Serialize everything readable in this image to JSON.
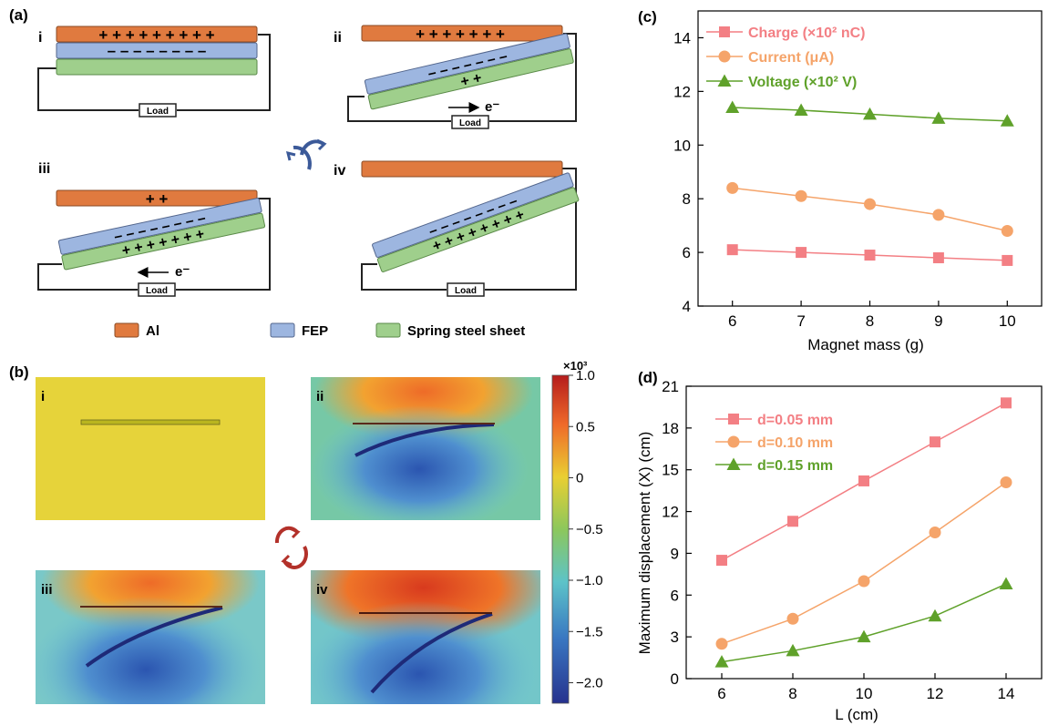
{
  "panel_labels": {
    "a": "(a)",
    "b": "(b)",
    "c": "(c)",
    "d": "(d)"
  },
  "schematic": {
    "sub_labels": [
      "i",
      "ii",
      "iii",
      "iv"
    ],
    "load_label": "Load",
    "electron_label": "e⁻",
    "charges": {
      "i_al": "+ + + + + + + + +",
      "i_fep": "– – – – – – – –",
      "ii_al": "+ + + + + + +",
      "ii_fep": "– – – – – – –",
      "ii_steel": "+ +",
      "iii_al": "+ +",
      "iii_fep": "– – – – – – – –",
      "iii_steel": "+ + + + + + +",
      "iv_fep": "– – – – – – – –",
      "iv_steel": "+ + + + + + + +"
    },
    "legend": [
      {
        "label": "Al",
        "color": "#e07a3f"
      },
      {
        "label": "FEP",
        "color": "#9db6e0"
      },
      {
        "label": "Spring steel sheet",
        "color": "#9fcf8c"
      }
    ]
  },
  "simulation": {
    "sub_labels": [
      "i",
      "ii",
      "iii",
      "iv"
    ],
    "colorbar": {
      "multiplier": "×10³",
      "ticks": [
        "1.0",
        "0.5",
        "0",
        "−0.5",
        "−1.0",
        "−1.5",
        "−2.0"
      ],
      "range": [
        -2.2,
        1.0
      ]
    }
  },
  "chart_data": [
    {
      "type": "line",
      "panel": "(c)",
      "xlabel": "Magnet mass (g)",
      "ylabel": "",
      "xlim": [
        5.5,
        10.5
      ],
      "ylim": [
        4,
        15
      ],
      "xticks": [
        6,
        7,
        8,
        9,
        10
      ],
      "yticks": [
        4,
        6,
        8,
        10,
        12,
        14
      ],
      "x": [
        6,
        7,
        8,
        9,
        10
      ],
      "legend_position": "top-left",
      "series": [
        {
          "name": "Charge (×10² nC)",
          "color": "#f37f84",
          "marker": "square",
          "values": [
            6.1,
            6.0,
            5.9,
            5.8,
            5.7
          ]
        },
        {
          "name": "Current (μA)",
          "color": "#f5a46a",
          "marker": "circle",
          "values": [
            8.4,
            8.1,
            7.8,
            7.4,
            6.8
          ]
        },
        {
          "name": "Voltage (×10² V)",
          "color": "#5fa12a",
          "marker": "triangle",
          "values": [
            11.4,
            11.3,
            11.15,
            11.0,
            10.9
          ]
        }
      ]
    },
    {
      "type": "line",
      "panel": "(d)",
      "xlabel": "L (cm)",
      "ylabel": "Maximum displacement (X) (cm)",
      "xlim": [
        5,
        15
      ],
      "ylim": [
        0,
        21
      ],
      "xticks": [
        6,
        8,
        10,
        12,
        14
      ],
      "yticks": [
        0,
        3,
        6,
        9,
        12,
        15,
        18,
        21
      ],
      "x": [
        6,
        8,
        10,
        12,
        14
      ],
      "legend_position": "top-left",
      "series": [
        {
          "name": "d=0.05 mm",
          "color": "#f37f84",
          "marker": "square",
          "values": [
            8.5,
            11.3,
            14.2,
            17.0,
            19.8
          ]
        },
        {
          "name": "d=0.10 mm",
          "color": "#f5a46a",
          "marker": "circle",
          "values": [
            2.5,
            4.3,
            7.0,
            10.5,
            14.1
          ]
        },
        {
          "name": "d=0.15 mm",
          "color": "#5fa12a",
          "marker": "triangle",
          "values": [
            1.2,
            2.0,
            3.0,
            4.5,
            6.8
          ]
        }
      ]
    }
  ]
}
